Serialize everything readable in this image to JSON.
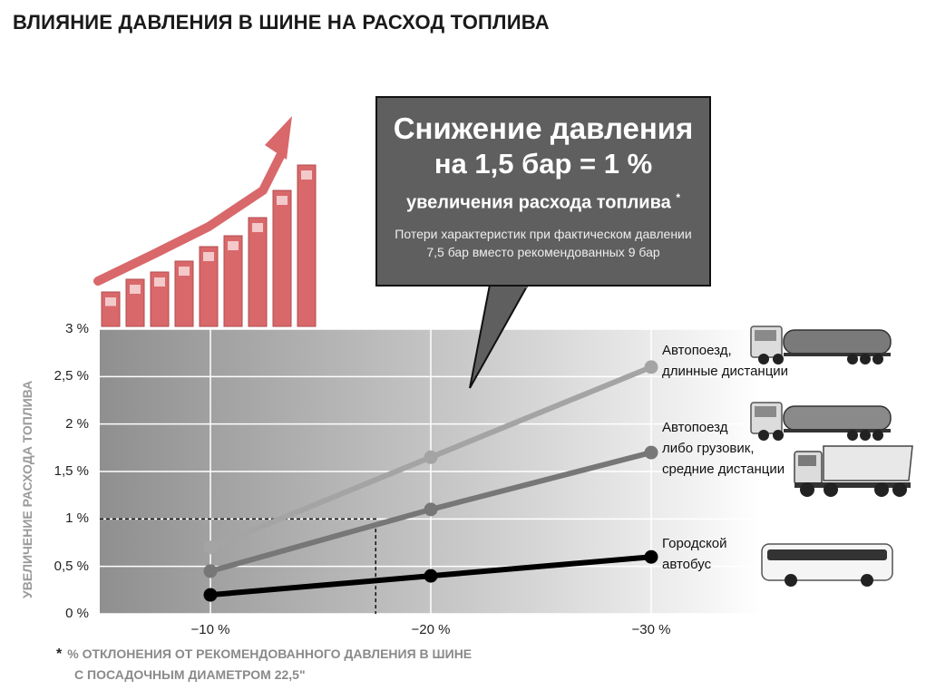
{
  "title": "ВЛИЯНИЕ ДАВЛЕНИЯ В ШИНЕ НА РАСХОД ТОПЛИВА",
  "callout": {
    "line1": "Снижение давления",
    "line2": "на 1,5 бар = 1 %",
    "line3": "увеличения расхода топлива",
    "star": "*",
    "note1": "Потери характеристик при фактическом давлении",
    "note2": "7,5 бар вместо рекомендованных 9 бар"
  },
  "footnote": {
    "star": "*",
    "line1": "% ОТКЛОНЕНИЯ ОТ РЕКОМЕНДОВАННОГО ДАВЛЕНИЯ В ШИНЕ",
    "line2": "С ПОСАДОЧНЫМ ДИАМЕТРОМ 22,5\""
  },
  "icons": [
    "rising-arrow-fuel-pumps-icon",
    "tanker-truck-icon",
    "tanker-truck-icon",
    "dump-truck-icon",
    "city-bus-icon"
  ],
  "colors": {
    "pump_bars": "#d9686b",
    "callout_bg": "#5f5f5f"
  },
  "chart_data": {
    "type": "line",
    "ylabel": "УВЕЛИЧЕНИЕ РАСХОДА ТОПЛИВА",
    "x": [
      -10,
      -20,
      -30
    ],
    "x_tick_labels": [
      "−10 %",
      "−20 %",
      "−30 %"
    ],
    "y_tick_labels": [
      "0 %",
      "0,5 %",
      "1 %",
      "1,5 %",
      "2 %",
      "2,5 %",
      "3 %"
    ],
    "ylim": [
      0,
      3
    ],
    "grid": true,
    "reference": {
      "x": -17.5,
      "y": 1.0,
      "style": "dashed"
    },
    "series": [
      {
        "name": "Автопоезд, длинные дистанции",
        "label_lines": [
          "Автопоезд,",
          "длинные дистанции"
        ],
        "color": "#a4a4a4",
        "values": [
          0.7,
          1.65,
          2.6
        ]
      },
      {
        "name": "Автопоезд либо грузовик, средние дистанции",
        "label_lines": [
          "Автопоезд",
          "либо грузовик,",
          "средние дистанции"
        ],
        "color": "#777777",
        "values": [
          0.45,
          1.1,
          1.7
        ]
      },
      {
        "name": "Городской автобус",
        "label_lines": [
          "Городской",
          "автобус"
        ],
        "color": "#000000",
        "values": [
          0.2,
          0.4,
          0.6
        ]
      }
    ]
  }
}
